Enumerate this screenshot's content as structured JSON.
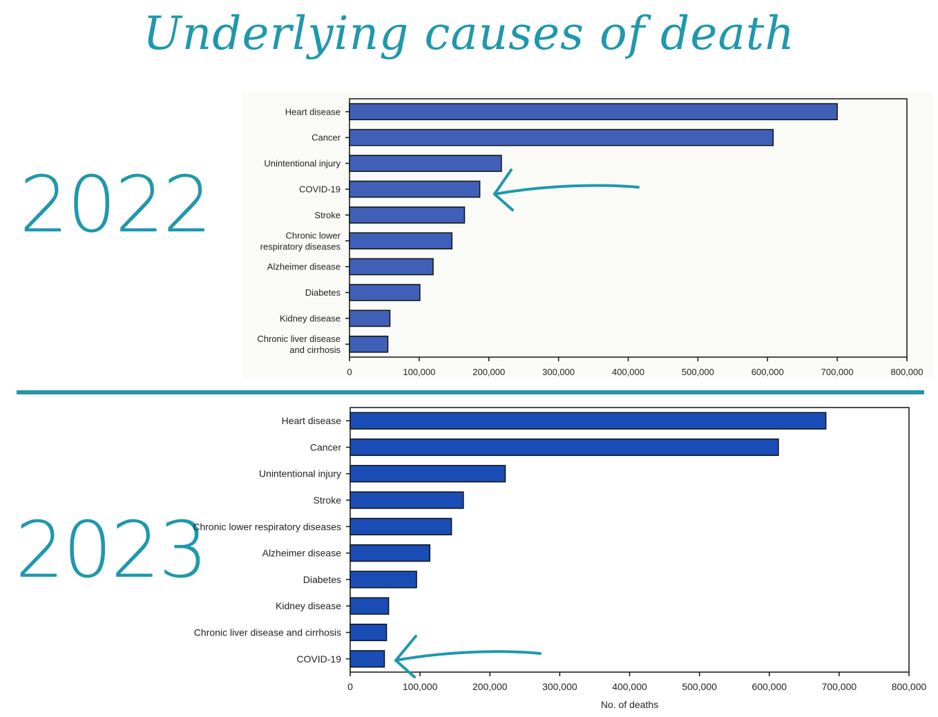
{
  "title": "Underlying causes of death",
  "year_2022": "2022",
  "year_2023": "2023",
  "colors": {
    "accent": "#1f98ad",
    "bar2022": "#4060b8",
    "bar2023": "#1a4db5"
  },
  "chart_data": [
    {
      "type": "bar",
      "orientation": "horizontal",
      "title": "2022",
      "categories": [
        "Heart disease",
        "Cancer",
        "Unintentional injury",
        "COVID-19",
        "Stroke",
        "Chronic lower respiratory diseases",
        "Alzheimer disease",
        "Diabetes",
        "Kidney disease",
        "Chronic liver disease and cirrhosis"
      ],
      "label_lines": [
        [
          "Heart disease"
        ],
        [
          "Cancer"
        ],
        [
          "Unintentional injury"
        ],
        [
          "COVID-19"
        ],
        [
          "Stroke"
        ],
        [
          "Chronic lower",
          "respiratory diseases"
        ],
        [
          "Alzheimer disease"
        ],
        [
          "Diabetes"
        ],
        [
          "Kidney disease"
        ],
        [
          "Chronic liver disease",
          "and cirrhosis"
        ]
      ],
      "values": [
        700000,
        608000,
        218000,
        187000,
        165000,
        147000,
        120000,
        101000,
        58000,
        55000
      ],
      "xlim": [
        0,
        800000
      ],
      "xticks": [
        "0",
        "100,000",
        "200,000",
        "300,000",
        "400,000",
        "500,000",
        "600,000",
        "700,000",
        "800,000"
      ],
      "xlabel": "",
      "annotation": "arrow pointing to COVID-19"
    },
    {
      "type": "bar",
      "orientation": "horizontal",
      "title": "2023",
      "categories": [
        "Heart disease",
        "Cancer",
        "Unintentional injury",
        "Stroke",
        "Chronic lower respiratory diseases",
        "Alzheimer disease",
        "Diabetes",
        "Kidney disease",
        "Chronic liver disease and cirrhosis",
        "COVID-19"
      ],
      "label_lines": [
        [
          "Heart disease"
        ],
        [
          "Cancer"
        ],
        [
          "Unintentional injury"
        ],
        [
          "Stroke"
        ],
        [
          "Chronic lower respiratory diseases"
        ],
        [
          "Alzheimer disease"
        ],
        [
          "Diabetes"
        ],
        [
          "Kidney disease"
        ],
        [
          "Chronic liver disease and cirrhosis"
        ],
        [
          "COVID-19"
        ]
      ],
      "values": [
        681000,
        613000,
        222000,
        162000,
        145000,
        114000,
        95000,
        55000,
        52000,
        49000
      ],
      "xlim": [
        0,
        800000
      ],
      "xticks": [
        "0",
        "100,000",
        "200,000",
        "300,000",
        "400,000",
        "500,000",
        "600,000",
        "700,000",
        "800,000"
      ],
      "xlabel": "No. of deaths",
      "annotation": "arrow pointing to COVID-19"
    }
  ]
}
